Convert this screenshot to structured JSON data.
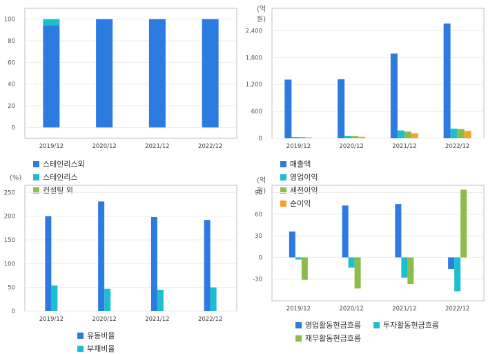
{
  "chart_data": [
    {
      "type": "bar",
      "stacked": true,
      "unit_label": "",
      "categories": [
        "2019/12",
        "2020/12",
        "2021/12",
        "2022/12"
      ],
      "yticks": [
        0,
        20,
        40,
        60,
        80,
        100
      ],
      "ylim": [
        -10,
        110
      ],
      "series": [
        {
          "name": "스테인리스외",
          "color": "#2b7be0",
          "values": [
            94,
            100,
            100,
            100
          ]
        },
        {
          "name": "스테인리스",
          "color": "#1bbfcf",
          "values": [
            6,
            0,
            0,
            0
          ]
        },
        {
          "name": "컨설팅 외",
          "color": "#8cbd4a",
          "values": [
            0,
            0,
            0,
            0
          ]
        }
      ],
      "grid": true,
      "legend": "bottom"
    },
    {
      "type": "bar",
      "stacked": false,
      "unit_label": "(억원)",
      "categories": [
        "2019/12",
        "2020/12",
        "2021/12",
        "2022/12"
      ],
      "yticks": [
        0,
        600,
        1200,
        1800,
        2400
      ],
      "ytick_labels": [
        "0",
        "600",
        "1,200",
        "1,800",
        "2,400"
      ],
      "ylim": [
        0,
        2900
      ],
      "series": [
        {
          "name": "매출액",
          "color": "#2b7be0",
          "values": [
            1310,
            1320,
            1890,
            2560
          ]
        },
        {
          "name": "영업이익",
          "color": "#1bbfcf",
          "values": [
            30,
            50,
            175,
            215
          ]
        },
        {
          "name": "세전이익",
          "color": "#8cbd4a",
          "values": [
            30,
            45,
            150,
            205
          ]
        },
        {
          "name": "순이익",
          "color": "#f3a42b",
          "values": [
            20,
            35,
            110,
            165
          ]
        }
      ],
      "grid": true,
      "legend": "bottom"
    },
    {
      "type": "bar",
      "stacked": false,
      "unit_label": "(%)",
      "categories": [
        "2019/12",
        "2020/12",
        "2021/12",
        "2022/12"
      ],
      "yticks": [
        0,
        50,
        100,
        150,
        200,
        250
      ],
      "ylim": [
        0,
        265
      ],
      "series": [
        {
          "name": "유동비율",
          "color": "#2b7be0",
          "values": [
            200,
            231,
            198,
            192
          ]
        },
        {
          "name": "부채비율",
          "color": "#1bbfcf",
          "values": [
            54,
            47,
            45,
            50
          ]
        }
      ],
      "grid": true,
      "legend": "bottom"
    },
    {
      "type": "bar",
      "stacked": false,
      "unit_label": "(억원)",
      "categories": [
        "2019/12",
        "2020/12",
        "2021/12",
        "2022/12"
      ],
      "yticks": [
        -30,
        0,
        30,
        60,
        90
      ],
      "ylim": [
        -60,
        100
      ],
      "series": [
        {
          "name": "영업활동현금흐름",
          "color": "#2b7be0",
          "values": [
            36,
            72,
            74,
            -16
          ]
        },
        {
          "name": "투자활동현금흐름",
          "color": "#1bbfcf",
          "values": [
            -3,
            -14,
            -28,
            -47
          ]
        },
        {
          "name": "재무활동현금흐름",
          "color": "#8cbd4a",
          "values": [
            -31,
            -43,
            -37,
            94
          ]
        }
      ],
      "grid": true,
      "legend": "bottom"
    }
  ]
}
